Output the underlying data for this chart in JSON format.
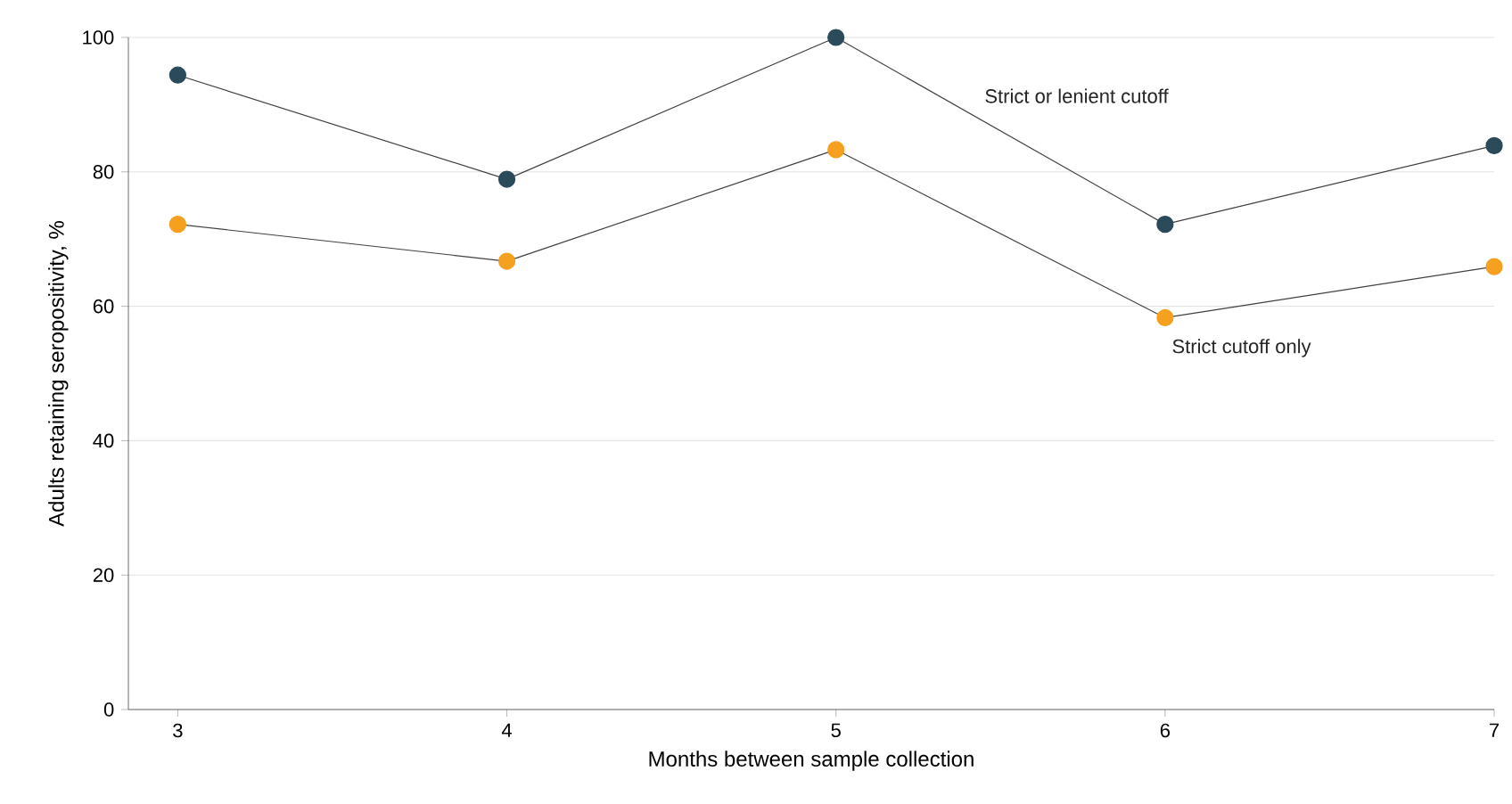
{
  "chart_data": {
    "type": "line",
    "xlabel": "Months between sample collection",
    "ylabel": "Adults retaining seropositivity, %",
    "x": [
      3,
      4,
      5,
      6,
      7
    ],
    "series": [
      {
        "name": "Strict or lenient cutoff",
        "color": "#2b4a5a",
        "values": [
          94.4,
          78.9,
          100,
          72.2,
          83.9
        ]
      },
      {
        "name": "Strict cutoff only",
        "color": "#f5a01e",
        "values": [
          72.2,
          66.7,
          83.3,
          58.3,
          65.9
        ]
      }
    ],
    "xlim": [
      2.85,
      7
    ],
    "xticks": [
      3,
      4,
      5,
      6,
      7
    ],
    "ylim": [
      0,
      100
    ],
    "yticks": [
      0,
      20,
      40,
      60,
      80,
      100
    ],
    "grid": "y",
    "marker": "circle",
    "line_style": "solid"
  }
}
